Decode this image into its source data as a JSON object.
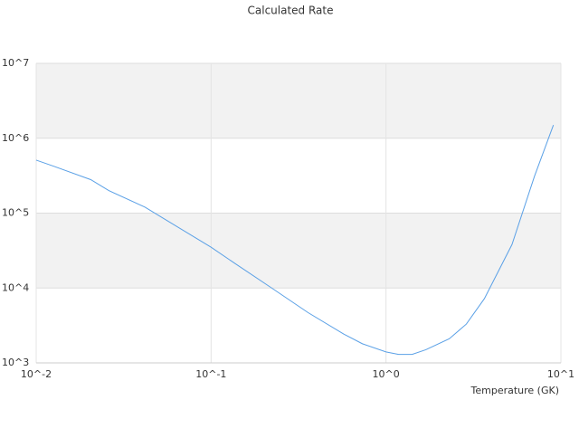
{
  "chart_data": {
    "type": "line",
    "title": "Calculated Rate",
    "x_label": "Temperature (GK)",
    "log_x": true,
    "log_y": true,
    "grid": true,
    "band_color": "#f2f2f2",
    "xlim": [
      0.01,
      10
    ],
    "ylim": [
      1000,
      10000000
    ],
    "xticks": [
      {
        "value": 0.01,
        "label": "10^-2"
      },
      {
        "value": 0.1,
        "label": "10^-1"
      },
      {
        "value": 1,
        "label": "10^0"
      },
      {
        "value": 10,
        "label": "10^1"
      }
    ],
    "yticks": [
      {
        "value": 1000,
        "label": "10^3"
      },
      {
        "value": 10000,
        "label": "10^4"
      },
      {
        "value": 100000,
        "label": "10^5"
      },
      {
        "value": 1000000,
        "label": "10^6"
      },
      {
        "value": 10000000,
        "label": "10^7"
      }
    ],
    "series": [
      {
        "color": "#5aa0e6",
        "x": [
          0.01,
          0.0127,
          0.0205,
          0.026,
          0.0419,
          0.053,
          0.1,
          0.138,
          0.222,
          0.358,
          0.578,
          0.733,
          1,
          1.18,
          1.41,
          1.69,
          2.3,
          2.88,
          3.65,
          5.25,
          7.06,
          9.06
        ],
        "values": [
          510000,
          420000,
          280000,
          200000,
          120000,
          86000,
          35000,
          21000,
          10000,
          4700,
          2400,
          1800,
          1400,
          1300,
          1300,
          1500,
          2100,
          3300,
          7200,
          38000,
          310000,
          1500000
        ]
      }
    ]
  }
}
